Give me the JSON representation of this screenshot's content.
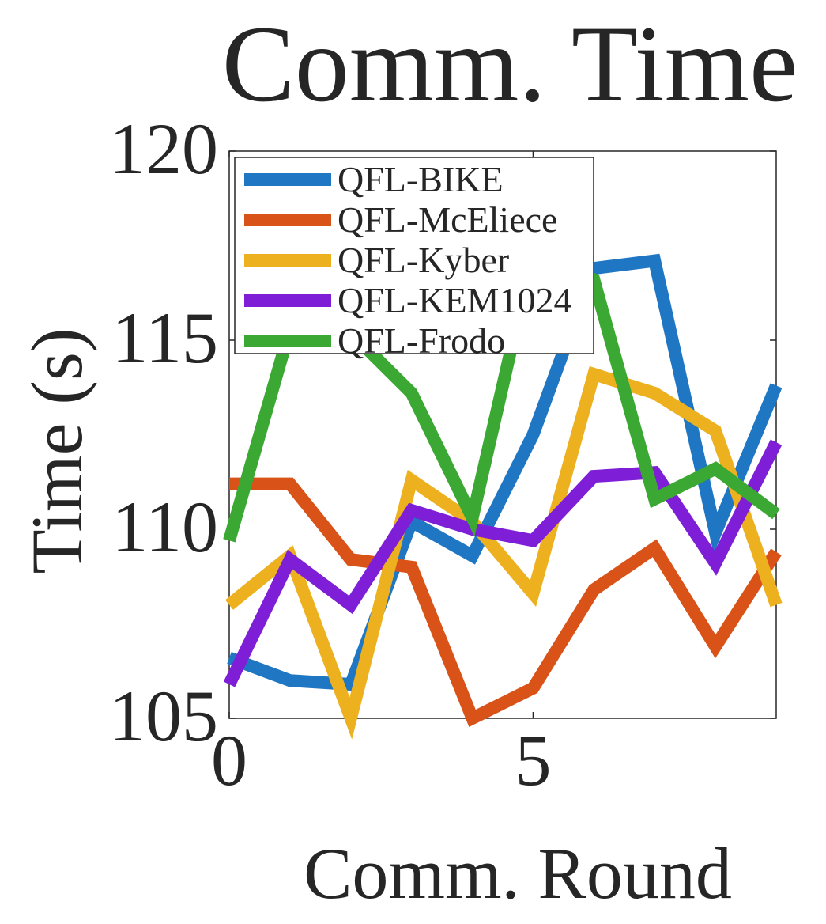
{
  "chart_data": {
    "type": "line",
    "title": "Comm. Time",
    "xlabel": "Comm. Round",
    "ylabel": "Time (s)",
    "xlim": [
      0,
      9
    ],
    "ylim": [
      105,
      120
    ],
    "xticks": [
      0,
      5
    ],
    "yticks": [
      105,
      110,
      115,
      120
    ],
    "grid": false,
    "legend_position": "top-left",
    "x": [
      0,
      1,
      2,
      3,
      4,
      5,
      6,
      7,
      8,
      9
    ],
    "series": [
      {
        "name": "QFL-BIKE",
        "color": "#1f77c4",
        "values": [
          106.6,
          106.0,
          105.9,
          110.2,
          109.3,
          112.5,
          116.9,
          117.1,
          109.9,
          113.8
        ]
      },
      {
        "name": "QFL-McEliece",
        "color": "#d95319",
        "values": [
          111.2,
          111.2,
          109.2,
          109.0,
          105.0,
          105.8,
          108.4,
          109.5,
          106.9,
          109.4
        ]
      },
      {
        "name": "QFL-Kyber",
        "color": "#edb120",
        "values": [
          108.0,
          109.3,
          105.0,
          111.3,
          110.2,
          108.3,
          114.1,
          113.6,
          112.6,
          108.0
        ]
      },
      {
        "name": "QFL-KEM1024",
        "color": "#7e1ed6",
        "values": [
          105.9,
          109.2,
          108.0,
          110.5,
          110.0,
          109.7,
          111.4,
          111.5,
          109.1,
          112.3
        ]
      },
      {
        "name": "QFL-Frodo",
        "color": "#3aa832",
        "values": [
          109.7,
          115.3,
          115.2,
          113.6,
          110.3,
          117.3,
          116.6,
          110.8,
          111.6,
          110.4
        ]
      }
    ]
  }
}
